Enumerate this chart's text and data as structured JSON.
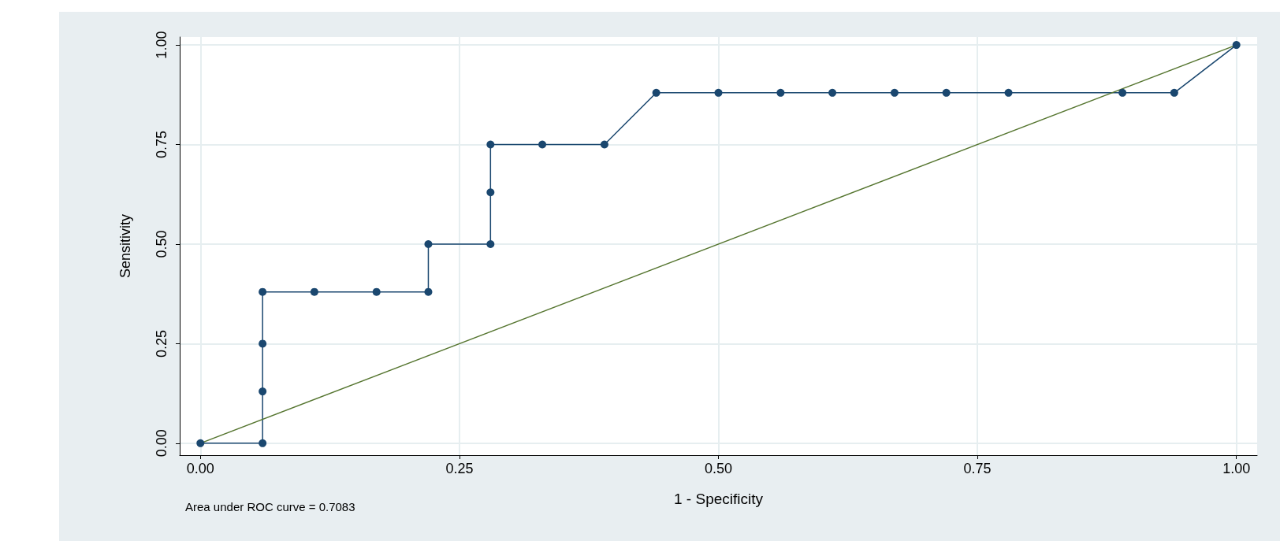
{
  "chart_data": {
    "type": "line",
    "xlabel": "1 - Specificity",
    "ylabel": "Sensitivity",
    "annotations": [
      "Area under ROC curve = 0.7083"
    ],
    "xlim": [
      -0.02,
      1.02
    ],
    "ylim": [
      -0.03,
      1.02
    ],
    "xticks": [
      {
        "value": 0,
        "label": "0.00"
      },
      {
        "value": 0.25,
        "label": "0.25"
      },
      {
        "value": 0.5,
        "label": "0.50"
      },
      {
        "value": 0.75,
        "label": "0.75"
      },
      {
        "value": 1,
        "label": "1.00"
      }
    ],
    "yticks": [
      {
        "value": 0,
        "label": "0.00"
      },
      {
        "value": 0.25,
        "label": "0.25"
      },
      {
        "value": 0.5,
        "label": "0.50"
      },
      {
        "value": 0.75,
        "label": "0.75"
      },
      {
        "value": 1,
        "label": "1.00"
      }
    ],
    "grid": true,
    "series": [
      {
        "color": "#1a476f",
        "marker": "circle",
        "x": [
          0,
          0.06,
          0.06,
          0.06,
          0.06,
          0.11,
          0.17,
          0.22,
          0.22,
          0.28,
          0.28,
          0.28,
          0.33,
          0.39,
          0.44,
          0.5,
          0.56,
          0.61,
          0.67,
          0.72,
          0.78,
          0.89,
          0.94,
          1
        ],
        "values": [
          0,
          0,
          0.13,
          0.25,
          0.38,
          0.38,
          0.38,
          0.38,
          0.5,
          0.5,
          0.63,
          0.75,
          0.75,
          0.75,
          0.88,
          0.88,
          0.88,
          0.88,
          0.88,
          0.88,
          0.88,
          0.88,
          0.88,
          1
        ]
      },
      {
        "color": "#55752f",
        "marker": "none",
        "x": [
          0,
          1
        ],
        "values": [
          0,
          1
        ]
      }
    ]
  }
}
